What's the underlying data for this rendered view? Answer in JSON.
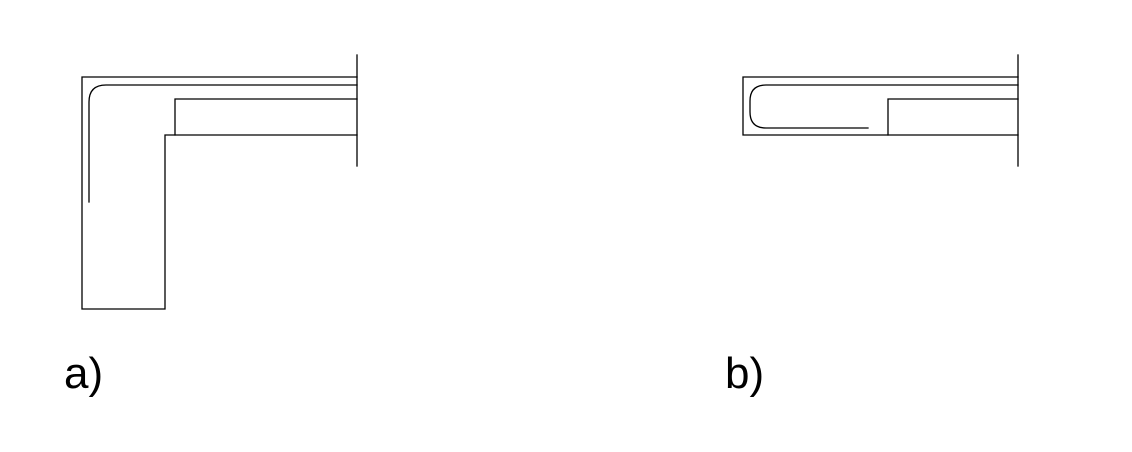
{
  "diagram": {
    "panels": [
      {
        "id": "a",
        "label": "a)"
      },
      {
        "id": "b",
        "label": "b)"
      }
    ],
    "colors": {
      "line": "#000000",
      "background": "#ffffff"
    }
  }
}
